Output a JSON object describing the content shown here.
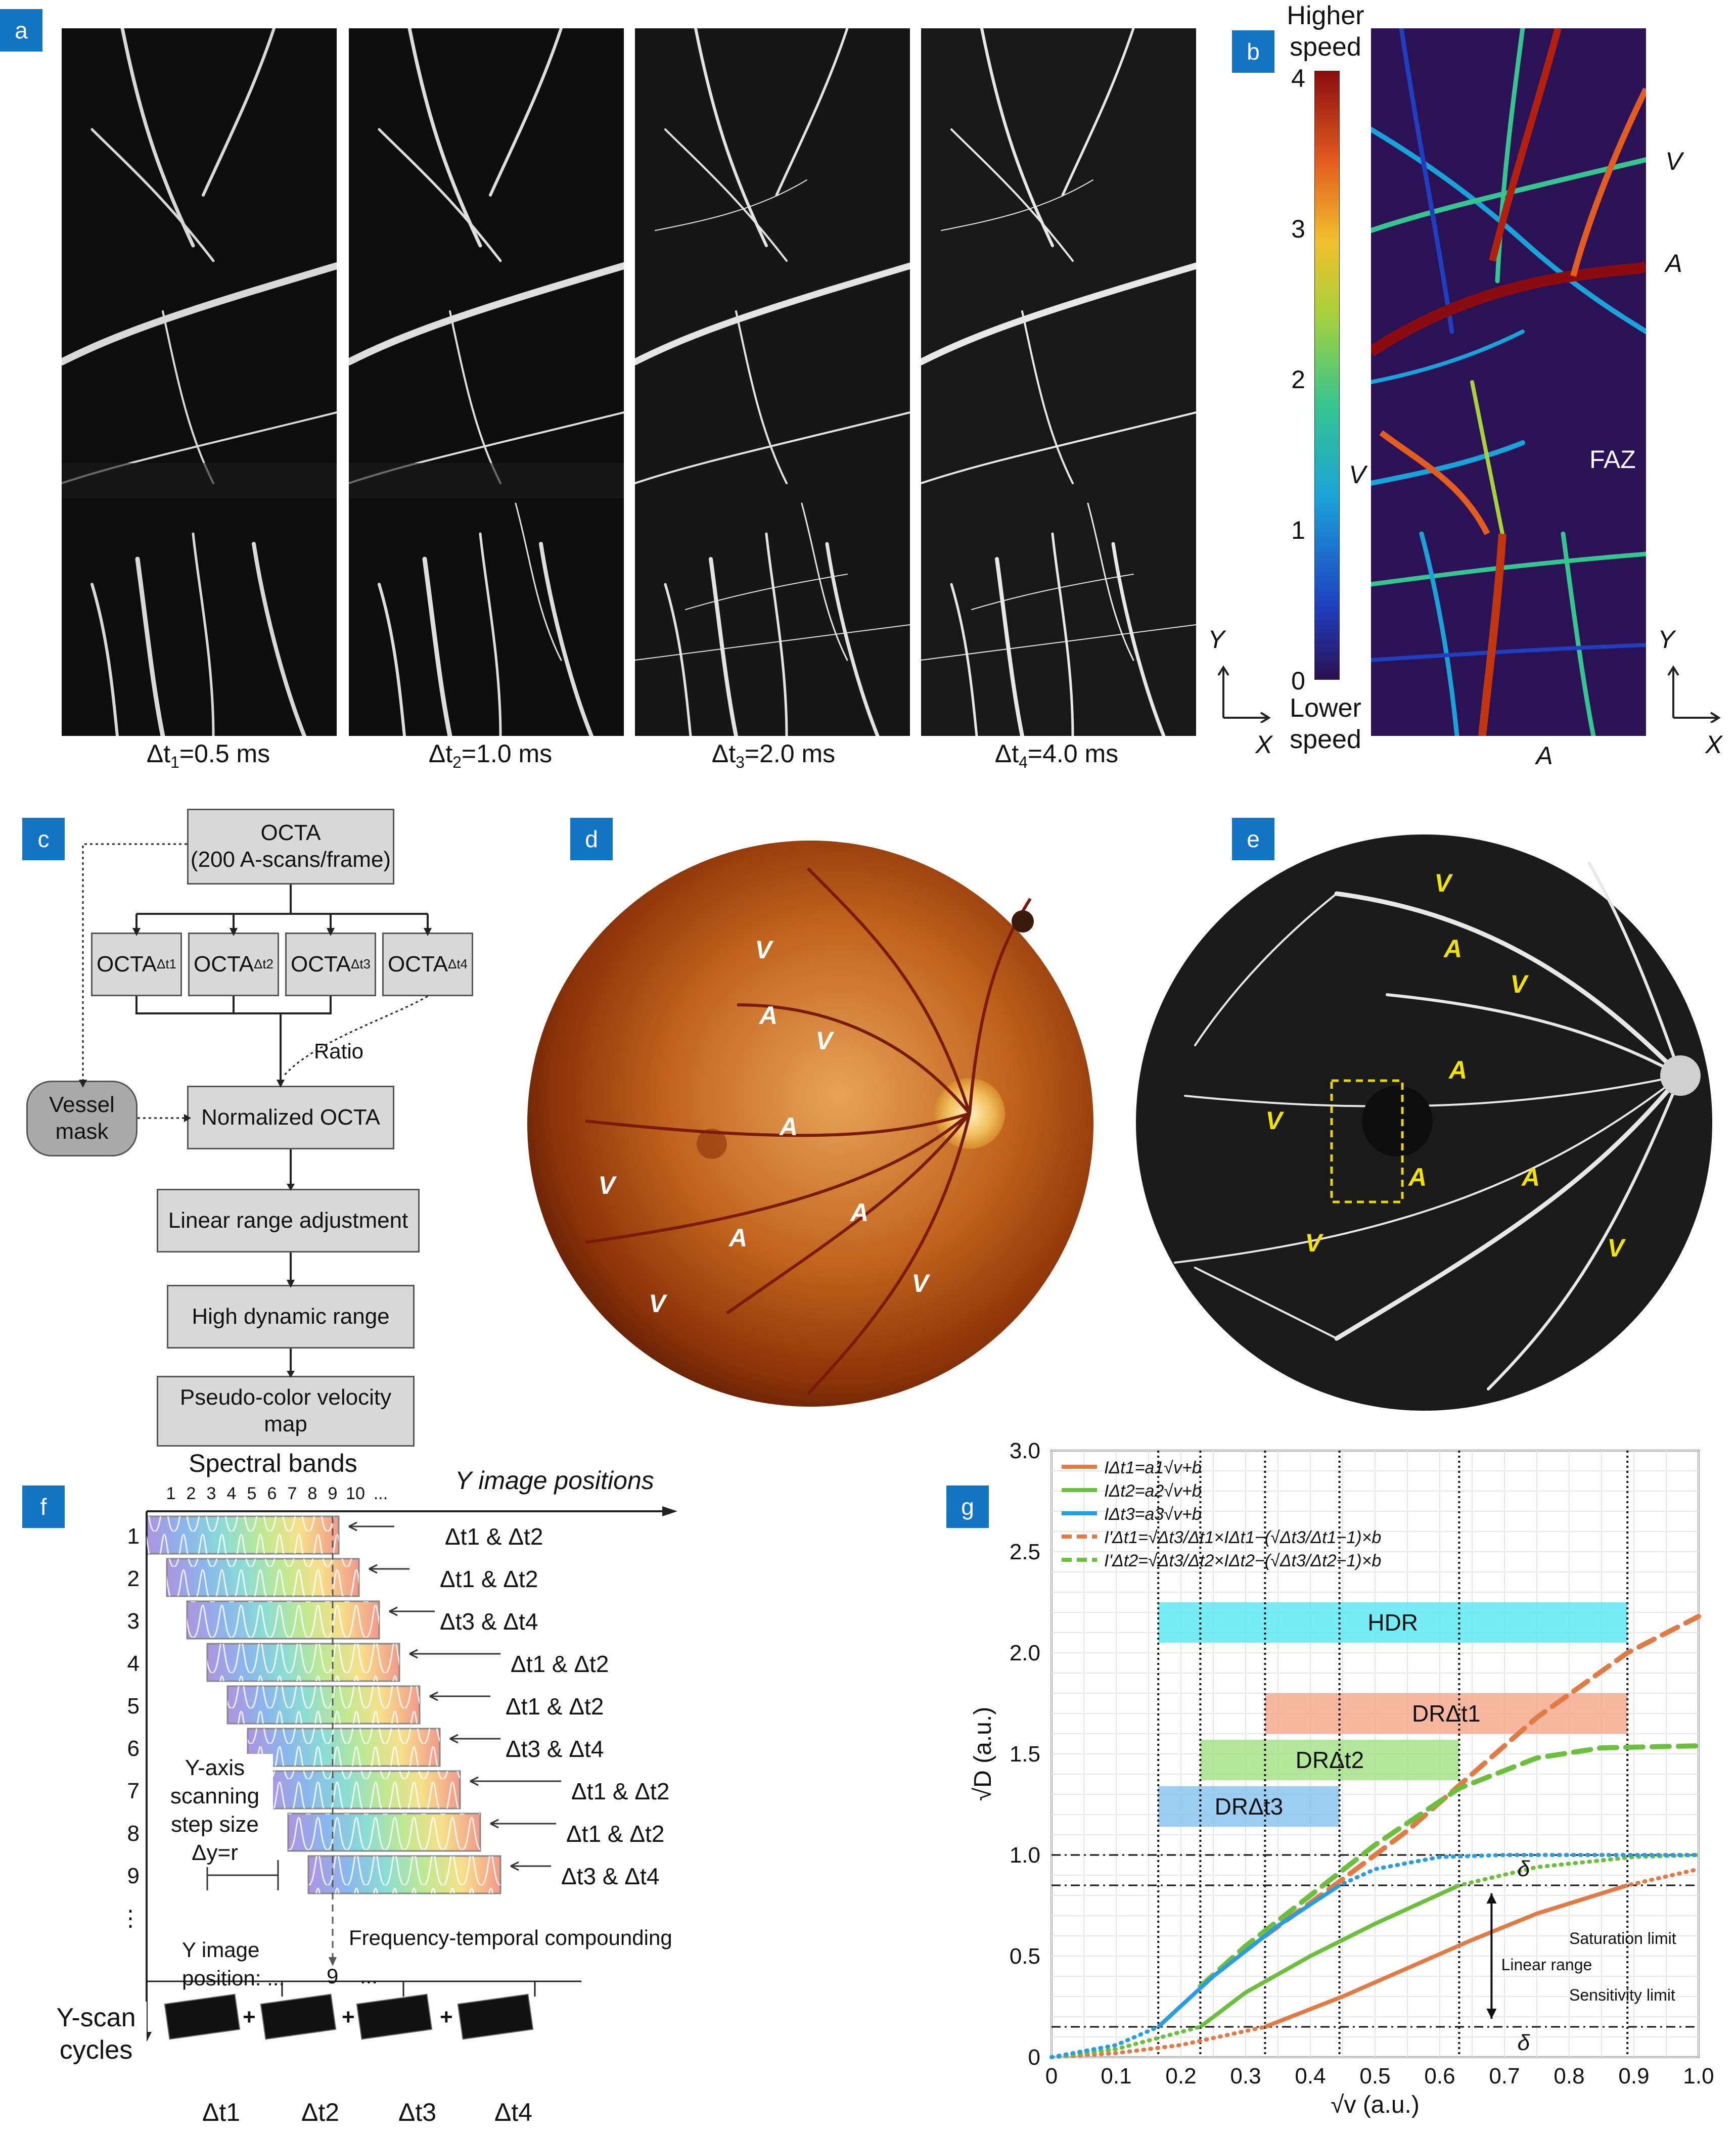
{
  "panel_labels": {
    "a": "a",
    "b": "b",
    "c": "c",
    "d": "d",
    "e": "e",
    "f": "f",
    "g": "g"
  },
  "panel_a": {
    "captions": [
      "=0.5 ms",
      "=1.0 ms",
      "=2.0 ms",
      "=4.0 ms"
    ],
    "cap_prefix": [
      "Δt",
      "Δt",
      "Δt",
      "Δt"
    ],
    "cap_sub": [
      "1",
      "2",
      "3",
      "4"
    ]
  },
  "panel_b": {
    "colorbar_top": "Higher speed",
    "colorbar_bottom": "Lower speed",
    "ticks": [
      "4",
      "3",
      "2",
      "1",
      "0"
    ],
    "labels": {
      "v_right": "V",
      "a_right": "A",
      "faz": "FAZ",
      "v_left": "V",
      "a_bottom": "A",
      "y1": "Y",
      "x1": "X",
      "y2": "Y",
      "x2": "X"
    }
  },
  "panel_c": {
    "top_box_line1": "OCTA",
    "top_box_line2": "(200 A-scans/frame)",
    "sub_boxes": [
      "OCTA",
      "OCTA",
      "OCTA",
      "OCTA"
    ],
    "sub_box_subs": [
      "Δt1",
      "Δt2",
      "Δt3",
      "Δt4"
    ],
    "ratio": "Ratio",
    "vessel_mask": "Vessel mask",
    "steps": [
      "Normalized OCTA",
      "Linear range adjustment",
      "High dynamic range",
      "Pseudo-color velocity map"
    ]
  },
  "panel_d": {
    "labels": [
      "V",
      "A",
      "V",
      "A",
      "V",
      "A",
      "A",
      "V",
      "V"
    ]
  },
  "panel_e": {
    "labels": [
      "V",
      "A",
      "V",
      "A",
      "V",
      "A",
      "A",
      "V",
      "V"
    ]
  },
  "panel_f": {
    "title": "Spectral bands",
    "y_axis_label": "Y image positions",
    "band_numbers": [
      "1",
      "2",
      "3",
      "4",
      "5",
      "6",
      "7",
      "8",
      "9",
      "10",
      "..."
    ],
    "row_numbers": [
      "1",
      "2",
      "3",
      "4",
      "5",
      "6",
      "7",
      "8",
      "9",
      "⋮"
    ],
    "pairs": [
      "Δt1 & Δt2",
      "Δt1 & Δt2",
      "Δt3 & Δt4",
      "Δt1 & Δt2",
      "Δt1 & Δt2",
      "Δt3 & Δt4",
      "Δt1 & Δt2",
      "Δt1 & Δt2",
      "Δt3 & Δt4"
    ],
    "scan_label": [
      "Y-axis",
      "scanning",
      "step size",
      "Δy=r"
    ],
    "compounding": "Frequency-temporal compounding",
    "position_label": [
      "Y image",
      "position: ...",
      "9",
      "..."
    ],
    "cycles_label": [
      "Y-scan",
      "cycles"
    ],
    "thumbs": [
      "Δt1",
      "Δt2",
      "Δt3",
      "Δt4"
    ]
  },
  "chart_data": {
    "type": "line",
    "xlabel": "√v (a.u.)",
    "ylabel": "√D (a.u.)",
    "xlim": [
      0,
      1.0
    ],
    "ylim": [
      0,
      3.0
    ],
    "xticks": [
      "0",
      "0.1",
      "0.2",
      "0.3",
      "0.4",
      "0.5",
      "0.6",
      "0.7",
      "0.8",
      "0.9",
      "1.0"
    ],
    "yticks": [
      "0",
      "0.5",
      "1.0",
      "1.5",
      "2.0",
      "2.5",
      "3.0"
    ],
    "legend": [
      "IΔt1=a1√v+b",
      "IΔt2=a2√v+b",
      "IΔt3=a3√v+b",
      "I'Δt1=√Δt3/Δt1×IΔt1−(√Δt3/Δt1−1)×b",
      "I'Δt2=√Δt3/Δt2×IΔt2−(√Δt3/Δt2−1)×b"
    ],
    "series": [
      {
        "name": "IΔt1=a1√v+b",
        "color": "#e07b45",
        "style": "solid+dotted",
        "x": [
          0,
          0.1,
          0.2,
          0.33,
          0.45,
          0.55,
          0.65,
          0.75,
          0.89,
          1.0
        ],
        "y": [
          0.0,
          0.02,
          0.06,
          0.15,
          0.3,
          0.44,
          0.58,
          0.71,
          0.85,
          0.93
        ]
      },
      {
        "name": "IΔt2=a2√v+b",
        "color": "#6cbf3c",
        "style": "solid+dotted",
        "x": [
          0,
          0.1,
          0.23,
          0.3,
          0.4,
          0.5,
          0.63,
          0.75,
          0.9,
          1.0
        ],
        "y": [
          0.0,
          0.04,
          0.15,
          0.32,
          0.5,
          0.66,
          0.85,
          0.94,
          0.99,
          1.0
        ]
      },
      {
        "name": "IΔt3=a3√v+b",
        "color": "#2a9de0",
        "style": "solid+dotted",
        "x": [
          0,
          0.1,
          0.165,
          0.25,
          0.35,
          0.445,
          0.5,
          0.6,
          0.7,
          0.85,
          1.0
        ],
        "y": [
          0.0,
          0.06,
          0.15,
          0.4,
          0.65,
          0.85,
          0.93,
          0.99,
          1.0,
          1.0,
          1.0
        ]
      },
      {
        "name": "I'Δt1",
        "color": "#e07b45",
        "style": "dashed",
        "x": [
          0.33,
          0.45,
          0.55,
          0.65,
          0.75,
          0.89,
          1.0
        ],
        "y": [
          0.6,
          0.88,
          1.12,
          1.4,
          1.68,
          2.0,
          2.18
        ]
      },
      {
        "name": "I'Δt2",
        "color": "#6cbf3c",
        "style": "dashed",
        "x": [
          0.23,
          0.3,
          0.4,
          0.5,
          0.63,
          0.75,
          0.85,
          1.0
        ],
        "y": [
          0.35,
          0.55,
          0.8,
          1.05,
          1.33,
          1.48,
          1.53,
          1.54
        ]
      }
    ],
    "bands": [
      {
        "label": "HDR",
        "x": [
          0.165,
          0.89
        ],
        "y": [
          2.05,
          2.25
        ],
        "color": "#5ee9f2"
      },
      {
        "label": "DRΔt1",
        "x": [
          0.33,
          0.89
        ],
        "y": [
          1.6,
          1.8
        ],
        "color": "#f4a98f"
      },
      {
        "label": "DRΔt2",
        "x": [
          0.23,
          0.63
        ],
        "y": [
          1.37,
          1.57
        ],
        "color": "#a6e08a"
      },
      {
        "label": "DRΔt3",
        "x": [
          0.165,
          0.445
        ],
        "y": [
          1.14,
          1.34
        ],
        "color": "#8cc4ee"
      }
    ],
    "hlines": [
      1.0,
      0.85,
      0.15
    ],
    "vlines": [
      0.165,
      0.23,
      0.33,
      0.445,
      0.63,
      0.89
    ],
    "annotations": [
      "δ",
      "δ",
      "Saturation limit",
      "Linear range",
      "Sensitivity limit"
    ]
  }
}
